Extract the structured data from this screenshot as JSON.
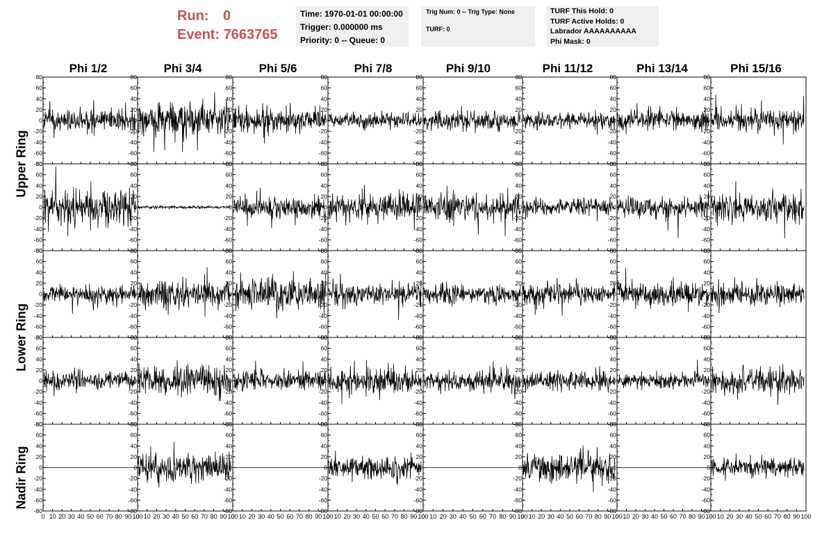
{
  "header": {
    "run_label": "Run:",
    "run_value": "0",
    "event_label": "Event:",
    "event_value": "7663765"
  },
  "time_box": {
    "time": "Time: 1970-01-01 00:00:00",
    "trigger": "Trigger: 0.000000 ms",
    "priority": "Priority: 0 -- Queue: 0"
  },
  "trig_box": {
    "trig_line": "Trig Num: 0 -- Trig Type: None",
    "turf_line": "TURF: 0"
  },
  "turf_box": {
    "this_hold": "TURF This Hold: 0",
    "active_holds": "TURF Active Holds: 0",
    "labrador": "Labrador AAAAAAAAAA",
    "phi_mask": "Phi Mask: 0"
  },
  "columns": [
    "Phi 1/2",
    "Phi 3/4",
    "Phi 5/6",
    "Phi 7/8",
    "Phi 9/10",
    "Phi 11/12",
    "Phi 13/14",
    "Phi 15/16"
  ],
  "rings": [
    "Upper Ring",
    "Lower Ring",
    "Nadir Ring"
  ],
  "chart_data": {
    "type": "line",
    "ylim": [
      -80,
      80
    ],
    "xlim": [
      0,
      100
    ],
    "y_ticks": [
      80,
      60,
      40,
      20,
      0,
      -20,
      -40,
      -60,
      -80
    ],
    "y_tick_labels": [
      "80",
      "60",
      "40",
      "20",
      "0",
      "-20",
      "-40",
      "-60",
      "-80"
    ],
    "x_ticks": [
      0,
      10,
      20,
      30,
      40,
      50,
      60,
      70,
      80,
      90,
      100
    ],
    "x_tick_labels": [
      "0",
      "10",
      "20",
      "30",
      "40",
      "50",
      "60",
      "70",
      "80",
      "90",
      "100"
    ],
    "sample_count": 260,
    "rows": [
      [
        {
          "amp": 10,
          "seed": 101,
          "flat": false
        },
        {
          "amp": 15,
          "seed": 102,
          "flat": false
        },
        {
          "amp": 12,
          "seed": 103,
          "flat": false
        },
        {
          "amp": 7,
          "seed": 104,
          "flat": false
        },
        {
          "amp": 9,
          "seed": 105,
          "flat": false
        },
        {
          "amp": 8,
          "seed": 106,
          "flat": false
        },
        {
          "amp": 9,
          "seed": 107,
          "flat": false
        },
        {
          "amp": 10,
          "seed": 108,
          "flat": false
        }
      ],
      [
        {
          "amp": 16,
          "seed": 201,
          "flat": false
        },
        {
          "amp": 1.5,
          "seed": 202,
          "flat": false
        },
        {
          "amp": 10,
          "seed": 203,
          "flat": false
        },
        {
          "amp": 12,
          "seed": 204,
          "flat": false
        },
        {
          "amp": 12,
          "seed": 205,
          "flat": false
        },
        {
          "amp": 8,
          "seed": 206,
          "flat": false
        },
        {
          "amp": 9,
          "seed": 207,
          "flat": false
        },
        {
          "amp": 13,
          "seed": 208,
          "flat": false
        }
      ],
      [
        {
          "amp": 8,
          "seed": 301,
          "flat": false
        },
        {
          "amp": 13,
          "seed": 302,
          "flat": false
        },
        {
          "amp": 14,
          "seed": 303,
          "flat": false
        },
        {
          "amp": 10,
          "seed": 304,
          "flat": false
        },
        {
          "amp": 9,
          "seed": 305,
          "flat": false
        },
        {
          "amp": 10,
          "seed": 306,
          "flat": false
        },
        {
          "amp": 10,
          "seed": 307,
          "flat": false
        },
        {
          "amp": 10,
          "seed": 308,
          "flat": false
        }
      ],
      [
        {
          "amp": 9,
          "seed": 401,
          "flat": false
        },
        {
          "amp": 15,
          "seed": 402,
          "flat": false
        },
        {
          "amp": 9,
          "seed": 403,
          "flat": false
        },
        {
          "amp": 11,
          "seed": 404,
          "flat": false
        },
        {
          "amp": 9,
          "seed": 405,
          "flat": false
        },
        {
          "amp": 9,
          "seed": 406,
          "flat": false
        },
        {
          "amp": 7,
          "seed": 407,
          "flat": false
        },
        {
          "amp": 11,
          "seed": 408,
          "flat": false
        }
      ],
      [
        {
          "amp": 0,
          "seed": 501,
          "flat": true
        },
        {
          "amp": 13,
          "seed": 502,
          "flat": false
        },
        {
          "amp": 0,
          "seed": 503,
          "flat": true
        },
        {
          "amp": 10,
          "seed": 504,
          "flat": false
        },
        {
          "amp": 0,
          "seed": 505,
          "flat": true
        },
        {
          "amp": 13,
          "seed": 506,
          "flat": false
        },
        {
          "amp": 0,
          "seed": 507,
          "flat": true
        },
        {
          "amp": 10,
          "seed": 508,
          "flat": false
        }
      ]
    ]
  }
}
